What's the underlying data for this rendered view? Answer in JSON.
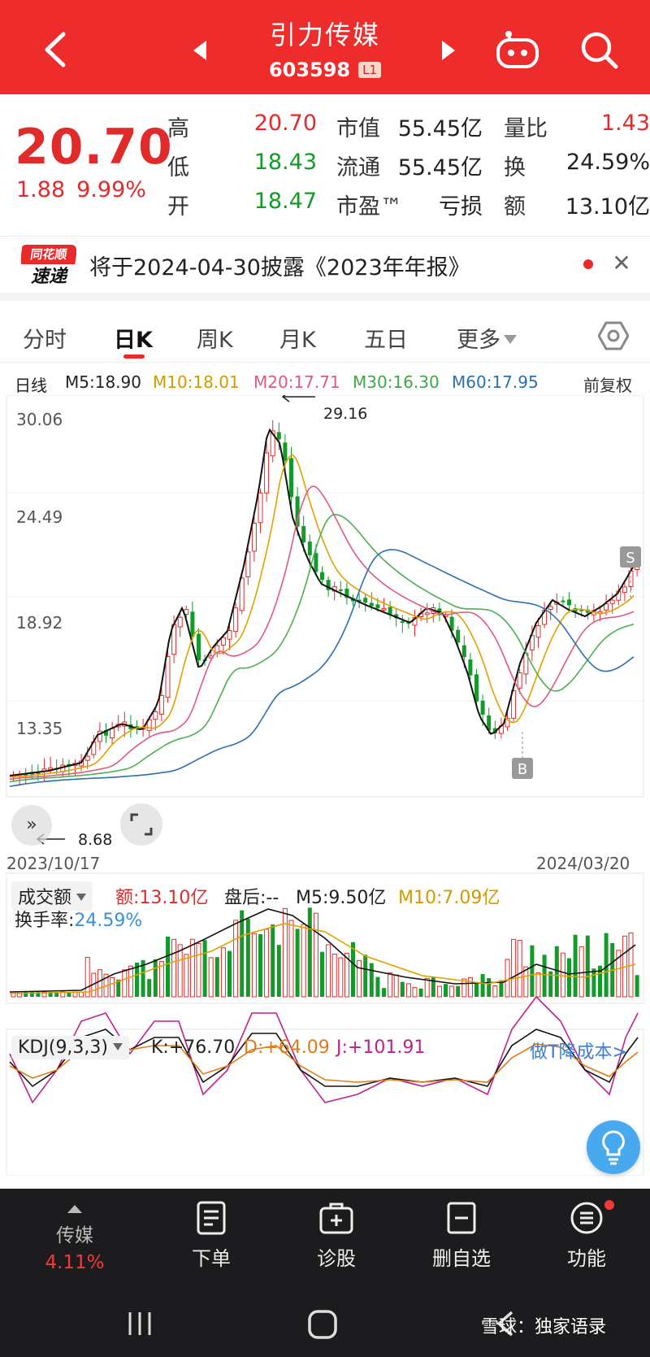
{
  "header": {
    "title": "引力传媒",
    "code": "603598",
    "level": "L1",
    "icons": [
      "back-icon",
      "prev-stock-icon",
      "next-stock-icon",
      "robot-icon",
      "search-icon"
    ]
  },
  "quote": {
    "price": "20.70",
    "change": "1.88",
    "change_pct": "9.99%",
    "rows": [
      {
        "l1": "高",
        "v1": "20.70",
        "l2": "市值",
        "v2": "55.45亿",
        "l3": "量比",
        "v3": "1.43"
      },
      {
        "l1": "低",
        "v1": "18.43",
        "l2": "流通",
        "v2": "55.45亿",
        "l3": "换",
        "v3": "24.59%"
      },
      {
        "l1": "开",
        "v1": "18.47",
        "l2": "市盈™",
        "v2": "亏损",
        "l3": "额",
        "v3": "13.10亿"
      }
    ]
  },
  "notice": {
    "logo_top": "同花顺",
    "logo_bottom": "速递",
    "text": "将于2024-04-30披露《2023年年报》"
  },
  "tabs": {
    "items": [
      "分时",
      "日K",
      "周K",
      "月K",
      "五日",
      "更多"
    ],
    "active": "日K"
  },
  "ma": {
    "label": "日线",
    "m5": "M5:18.90",
    "m10": "M10:18.01",
    "m20": "M20:17.71",
    "m30": "M30:16.30",
    "m60": "M60:17.95",
    "adjust": "前复权",
    "colors": {
      "m5": "#111111",
      "m10": "#e0a000",
      "m20": "#e05a80",
      "m30": "#4caf50",
      "m60": "#2a6fb0"
    }
  },
  "kchart": {
    "y_labels": [
      "30.06",
      "24.49",
      "18.92",
      "13.35"
    ],
    "high_note": "29.16",
    "low_note": "8.68",
    "start_date": "2023/10/17",
    "end_date": "2024/03/20",
    "signal_b": "B",
    "signal_s": "S"
  },
  "volume": {
    "selector": "成交额",
    "amount": "额:13.10亿",
    "after": "盘后:--",
    "m5": "M5:9.50亿",
    "m10": "M10:7.09亿",
    "turnover_label": "换手率:",
    "turnover": "24.59%"
  },
  "kdj": {
    "selector": "KDJ(9,3,3)",
    "k": "K:+76.70",
    "d": "D:+64.09",
    "j": "J:+101.91",
    "promo": "做T降成本>"
  },
  "bottom": {
    "sector_name": "传媒",
    "sector_pct": "4.11%",
    "items": [
      "下单",
      "诊股",
      "删自选",
      "功能"
    ]
  },
  "watermark": "雪球：独家语录",
  "colors": {
    "up": "#e12a2a",
    "down": "#139a2a",
    "header": "#ee2c2c",
    "dark_bar": "#1c1c1e"
  }
}
